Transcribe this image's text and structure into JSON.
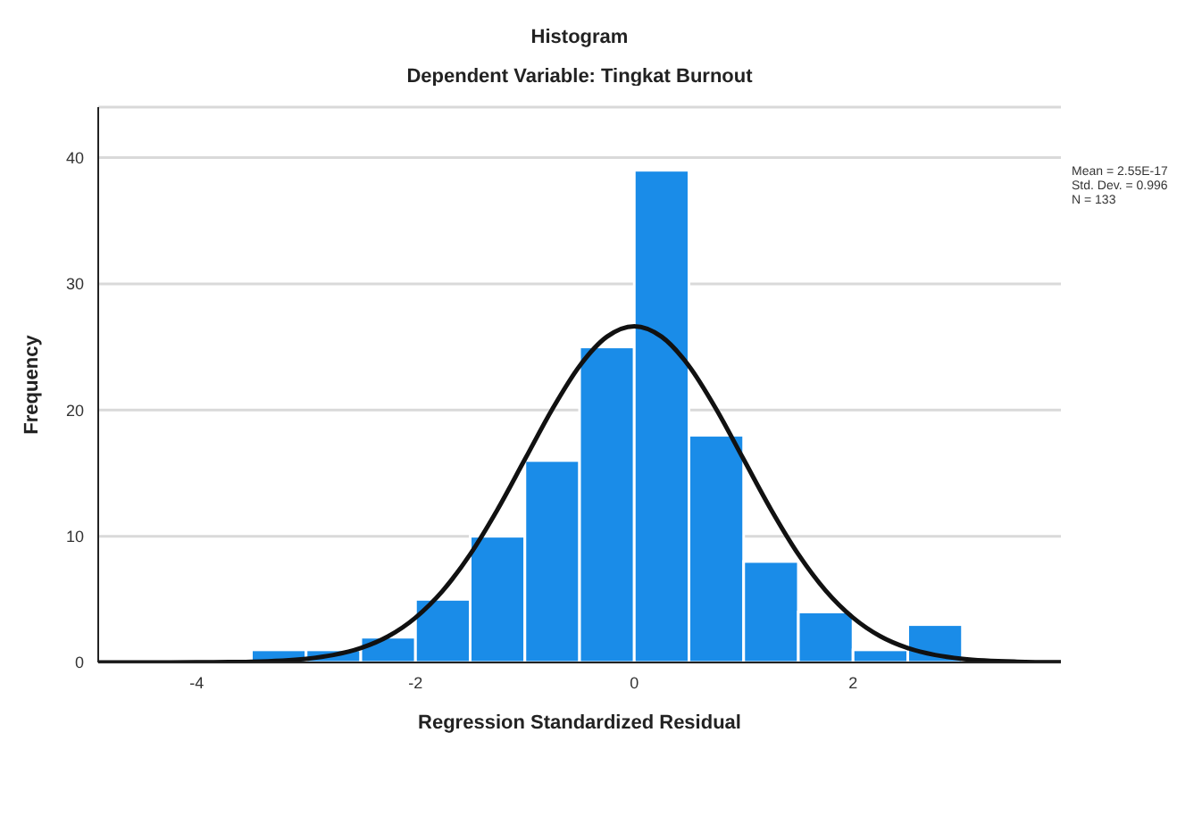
{
  "chart_data": {
    "type": "histogram",
    "title": "Histogram",
    "subtitle": "Dependent Variable: Tingkat Burnout",
    "xlabel": "Regression Standardized Residual",
    "ylabel": "Frequency",
    "bins": [
      -3.5,
      -3.0,
      -2.5,
      -2.0,
      -1.5,
      -1.0,
      -0.5,
      0.0,
      0.5,
      1.0,
      1.5,
      2.0,
      2.5,
      3.0
    ],
    "values": [
      1,
      1,
      2,
      5,
      10,
      16,
      25,
      39,
      18,
      8,
      4,
      1,
      3
    ],
    "color": "#1a8ce8",
    "series": [
      {
        "type": "line",
        "color": "#111111",
        "x": [
          -4.9,
          -4.5,
          -4.0,
          -3.5,
          -3.0,
          -2.75,
          -2.5,
          -2.25,
          -2.0,
          -1.75,
          -1.5,
          -1.25,
          -1.0,
          -0.75,
          -0.5,
          -0.25,
          0.0,
          0.25,
          0.5,
          0.75,
          1.0,
          1.25,
          1.5,
          1.75,
          2.0,
          2.25,
          2.5,
          2.75,
          3.0,
          3.5,
          3.9
        ],
        "values": [
          0,
          0,
          0.01,
          0.06,
          0.29,
          0.59,
          1.14,
          2.07,
          3.55,
          5.69,
          8.57,
          12.12,
          16.09,
          20.06,
          23.49,
          25.81,
          26.64,
          25.81,
          23.49,
          20.06,
          16.09,
          12.12,
          8.57,
          5.69,
          3.55,
          2.07,
          1.14,
          0.59,
          0.29,
          0.06,
          0.01
        ]
      }
    ],
    "xlim": [
      -4.9,
      3.9
    ],
    "xticks": [
      -4,
      -2,
      0,
      2
    ],
    "ylim": [
      0,
      44
    ],
    "yticks": [
      0,
      10,
      20,
      30,
      40
    ],
    "grid": "y",
    "annotations": [
      "Mean = 2.55E-17",
      "Std. Dev. = 0.996",
      "N = 133"
    ]
  }
}
